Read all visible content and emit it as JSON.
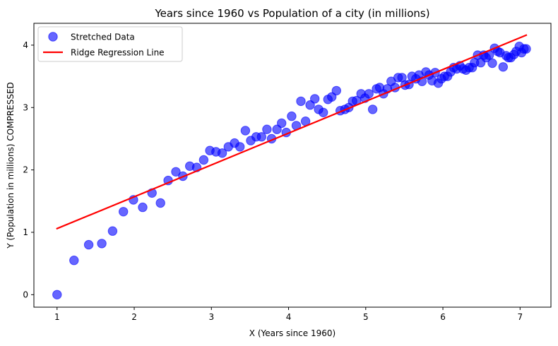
{
  "chart_data": {
    "type": "scatter",
    "title": "Years since 1960 vs Population of a city (in millions)",
    "xlabel": "X (Years since 1960)",
    "ylabel": "Y (Population in millions) COMPRESSED",
    "xlim": [
      0.7,
      7.4
    ],
    "ylim": [
      -0.2,
      4.35
    ],
    "xticks": [
      1,
      2,
      3,
      4,
      5,
      6,
      7
    ],
    "yticks": [
      0,
      1,
      2,
      3,
      4
    ],
    "grid": false,
    "legend_position": "top-left",
    "series": [
      {
        "name": "Stretched Data",
        "kind": "scatter",
        "color": "#0000ff",
        "x": [
          1.0,
          1.22,
          1.41,
          1.58,
          1.72,
          1.86,
          1.99,
          2.11,
          2.23,
          2.34,
          2.44,
          2.54,
          2.63,
          2.72,
          2.81,
          2.9,
          2.98,
          3.06,
          3.14,
          3.22,
          3.3,
          3.37,
          3.44,
          3.51,
          3.58,
          3.65,
          3.72,
          3.78,
          3.85,
          3.91,
          3.97,
          4.04,
          4.1,
          4.16,
          4.22,
          4.28,
          4.34,
          4.39,
          4.45,
          4.51,
          4.56,
          4.62,
          4.67,
          4.73,
          4.78,
          4.83,
          4.88,
          4.94,
          4.99,
          5.04,
          5.09,
          5.14,
          5.18,
          5.23,
          5.28,
          5.33,
          5.38,
          5.42,
          5.47,
          5.51,
          5.56,
          5.6,
          5.65,
          5.69,
          5.73,
          5.78,
          5.82,
          5.86,
          5.9,
          5.94,
          5.98,
          6.02,
          6.06,
          6.1,
          6.14,
          6.18,
          6.22,
          6.26,
          6.3,
          6.34,
          6.38,
          6.41,
          6.45,
          6.49,
          6.53,
          6.56,
          6.6,
          6.64,
          6.67,
          6.71,
          6.74,
          6.78,
          6.82,
          6.85,
          6.88,
          6.92,
          6.95,
          6.99,
          7.02,
          7.05,
          7.08
        ],
        "y": [
          0.0,
          0.55,
          0.8,
          0.82,
          1.02,
          1.33,
          1.52,
          1.4,
          1.63,
          1.47,
          1.83,
          1.97,
          1.9,
          2.06,
          2.04,
          2.16,
          2.31,
          2.29,
          2.27,
          2.37,
          2.43,
          2.37,
          2.63,
          2.47,
          2.53,
          2.53,
          2.65,
          2.5,
          2.65,
          2.75,
          2.6,
          2.86,
          2.71,
          3.1,
          2.78,
          3.04,
          3.14,
          2.97,
          2.92,
          3.13,
          3.17,
          3.27,
          2.95,
          2.97,
          3.0,
          3.1,
          3.11,
          3.22,
          3.15,
          3.22,
          2.97,
          3.3,
          3.32,
          3.22,
          3.3,
          3.42,
          3.32,
          3.48,
          3.48,
          3.36,
          3.37,
          3.5,
          3.46,
          3.52,
          3.42,
          3.57,
          3.52,
          3.43,
          3.56,
          3.39,
          3.46,
          3.5,
          3.5,
          3.57,
          3.64,
          3.62,
          3.67,
          3.62,
          3.6,
          3.64,
          3.64,
          3.72,
          3.84,
          3.72,
          3.84,
          3.8,
          3.84,
          3.71,
          3.95,
          3.9,
          3.88,
          3.65,
          3.83,
          3.8,
          3.8,
          3.85,
          3.9,
          3.98,
          3.88,
          3.94,
          3.94
        ]
      },
      {
        "name": "Ridge Regression Line",
        "kind": "line",
        "color": "#ff0000",
        "x": [
          1.0,
          7.08
        ],
        "y": [
          1.06,
          4.16
        ]
      }
    ]
  }
}
